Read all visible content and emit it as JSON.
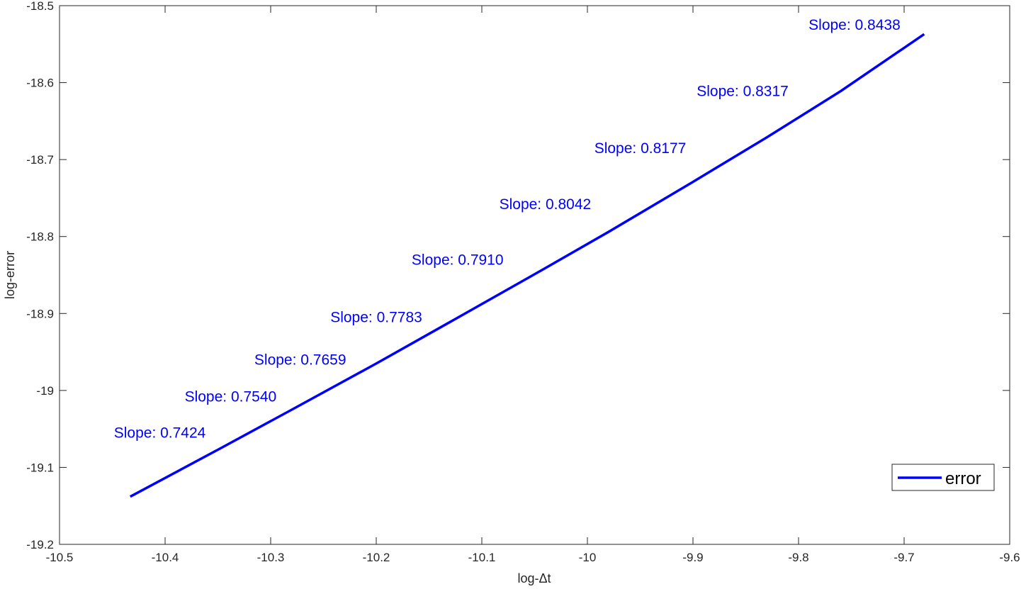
{
  "chart_data": {
    "type": "line",
    "xlabel": "log-Δt",
    "ylabel": "log-error",
    "xlim": [
      -10.5,
      -9.6
    ],
    "ylim": [
      -19.2,
      -18.5
    ],
    "xticks": [
      -10.5,
      -10.4,
      -10.3,
      -10.2,
      -10.1,
      -10,
      -9.9,
      -9.8,
      -9.7,
      -9.6
    ],
    "xtick_labels": [
      "-10.5",
      "-10.4",
      "-10.3",
      "-10.2",
      "-10.1",
      "-10",
      "-9.9",
      "-9.8",
      "-9.7",
      "-9.6"
    ],
    "yticks": [
      -18.5,
      -18.6,
      -18.7,
      -18.8,
      -18.9,
      -19,
      -19.1,
      -19.2
    ],
    "ytick_labels": [
      "-18.5",
      "-18.6",
      "-18.7",
      "-18.8",
      "-18.9",
      "-19",
      "-19.1",
      "-19.2"
    ],
    "grid": false,
    "legend_position": "bottom-right",
    "series": [
      {
        "name": "error",
        "color": "#0000ff",
        "x": [
          -10.433,
          -10.35,
          -10.28,
          -10.2,
          -10.13,
          -10.05,
          -9.98,
          -9.9,
          -9.83,
          -9.76,
          -9.681
        ],
        "y": [
          -19.138,
          -19.077,
          -19.025,
          -18.965,
          -18.911,
          -18.849,
          -18.794,
          -18.729,
          -18.671,
          -18.611,
          -18.537
        ]
      }
    ],
    "annotations": [
      {
        "text": "Slope: 0.7424",
        "x": -10.405,
        "y": -19.055
      },
      {
        "text": "Slope: 0.7540",
        "x": -10.338,
        "y": -19.008
      },
      {
        "text": "Slope: 0.7659",
        "x": -10.272,
        "y": -18.96
      },
      {
        "text": "Slope: 0.7783",
        "x": -10.2,
        "y": -18.905
      },
      {
        "text": "Slope: 0.7910",
        "x": -10.123,
        "y": -18.83
      },
      {
        "text": "Slope: 0.8042",
        "x": -10.04,
        "y": -18.758
      },
      {
        "text": "Slope: 0.8177",
        "x": -9.95,
        "y": -18.685
      },
      {
        "text": "Slope: 0.8317",
        "x": -9.853,
        "y": -18.611
      },
      {
        "text": "Slope: 0.8438",
        "x": -9.747,
        "y": -18.525
      }
    ]
  }
}
